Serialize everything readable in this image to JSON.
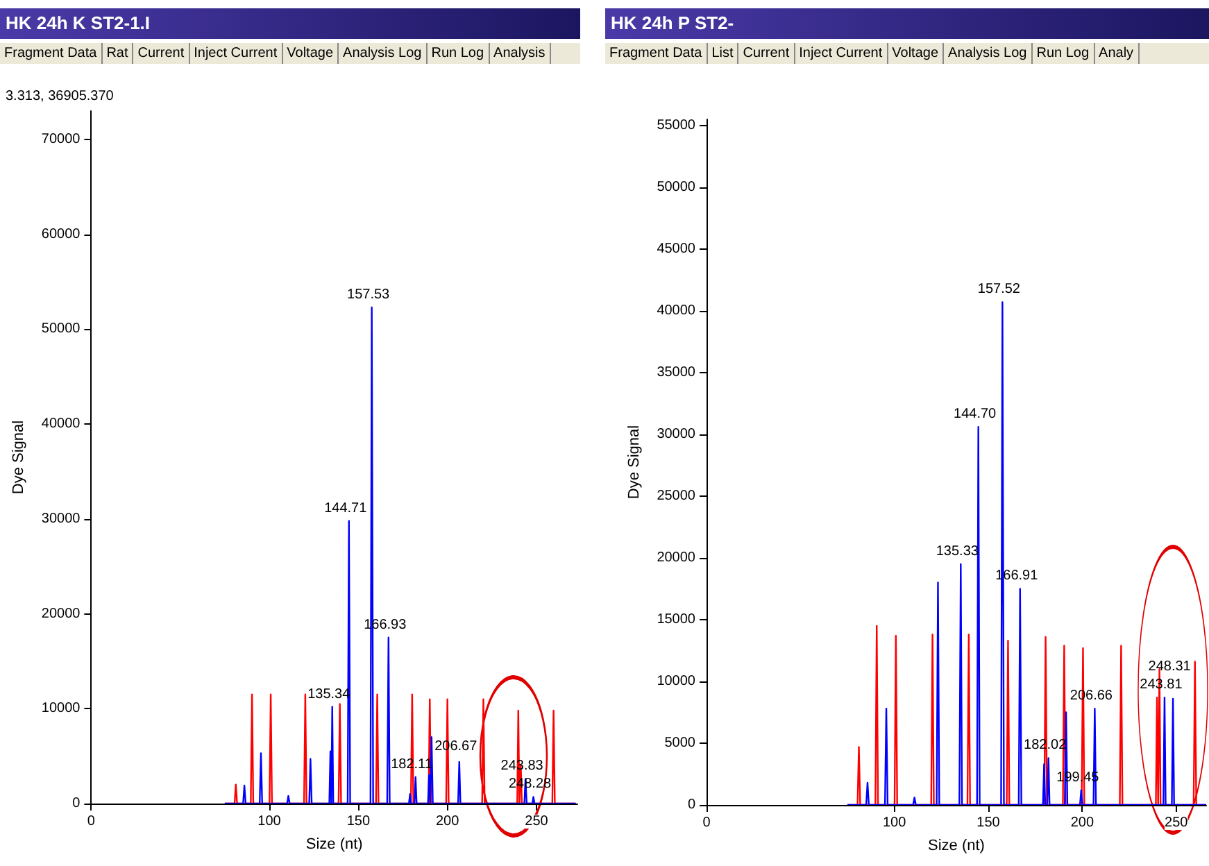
{
  "chart_data": [
    {
      "type": "line",
      "title": "HK 24h K ST2-1.I",
      "subtitle": "3.313, 36905.370",
      "xlabel": "Size (nt)",
      "ylabel": "Dye Signal",
      "xlim": [
        0,
        273
      ],
      "xticks": [
        0,
        100,
        150,
        200,
        250
      ],
      "ylim": [
        0,
        73000
      ],
      "yticks": [
        0,
        10000,
        20000,
        30000,
        40000,
        50000,
        60000,
        70000
      ],
      "series": [
        {
          "color": "#ff0000",
          "x": [
            75,
            80.5,
            81.2,
            81.9,
            89.6,
            90.3,
            91,
            100.1,
            100.8,
            101.5,
            119.5,
            120.2,
            120.9,
            138.9,
            139.6,
            140.3,
            159.9,
            160.6,
            161.3,
            179.5,
            180.2,
            180.9,
            189.4,
            190.1,
            190.8,
            199.3,
            200,
            200.7,
            219.5,
            220.2,
            220.9,
            239.2,
            239.8,
            240.4,
            240.6,
            241.2,
            241.8,
            258.9,
            259.6,
            260.3,
            272
          ],
          "values": [
            0,
            0,
            2000,
            0,
            0,
            11500,
            0,
            0,
            11500,
            0,
            0,
            11500,
            0,
            0,
            10500,
            0,
            0,
            11500,
            0,
            0,
            11500,
            0,
            0,
            11000,
            0,
            0,
            11000,
            0,
            0,
            11000,
            0,
            0,
            9800,
            0,
            0,
            4000,
            0,
            0,
            9800,
            0,
            0
          ]
        },
        {
          "color": "#0000ff",
          "x": [
            75,
            85.3,
            86,
            86.7,
            94.6,
            95.3,
            96,
            110,
            110.7,
            111.4,
            122.4,
            123.1,
            123.8,
            133.7,
            134.3,
            134.8,
            134.85,
            135.34,
            135.9,
            144,
            144.71,
            145.4,
            156.8,
            157.53,
            158.3,
            166.2,
            166.93,
            167.6,
            178.4,
            179,
            179.6,
            181.5,
            182.11,
            182.7,
            189.1,
            189.7,
            190.3,
            190.5,
            191.1,
            191.8,
            206,
            206.67,
            207.3,
            243.2,
            243.83,
            244.5,
            247.7,
            248.28,
            248.9,
            272
          ],
          "values": [
            0,
            0,
            1900,
            0,
            0,
            5300,
            0,
            0,
            800,
            0,
            0,
            4700,
            0,
            0,
            5500,
            0,
            0,
            10200,
            0,
            0,
            29800,
            0,
            0,
            52300,
            0,
            0,
            17500,
            0,
            0,
            1000,
            0,
            0,
            2800,
            0,
            0,
            3000,
            0,
            0,
            7000,
            0,
            0,
            4400,
            0,
            0,
            2600,
            0,
            0,
            700,
            0,
            0
          ]
        }
      ],
      "annotations": [
        "Fragment Data",
        "Rat",
        "Current",
        "Inject Current",
        "Voltage",
        "Analysis Log",
        "Run Log",
        "Analysis",
        {
          "text": "135.34",
          "x": 135.34,
          "y": 10200
        },
        {
          "text": "144.71",
          "x": 144.71,
          "y": 29800
        },
        {
          "text": "157.53",
          "x": 157.53,
          "y": 52300
        },
        {
          "text": "166.93",
          "x": 166.93,
          "y": 17500
        },
        {
          "text": "182.11",
          "x": 182.11,
          "y": 2800
        },
        {
          "text": "206.67",
          "x": 206.67,
          "y": 4400
        },
        {
          "text": "243.83",
          "x": 243.83,
          "y": 2600
        },
        {
          "text": "248.28",
          "x": 248.28,
          "y": 700
        }
      ]
    },
    {
      "type": "line",
      "title": "HK 24h P ST2-",
      "xlabel": "Size (nt)",
      "ylabel": "Dye Signal",
      "xlim": [
        0,
        266
      ],
      "xticks": [
        0,
        100,
        150,
        200,
        250
      ],
      "ylim": [
        0,
        55500
      ],
      "yticks": [
        0,
        5000,
        10000,
        15000,
        20000,
        25000,
        30000,
        35000,
        40000,
        45000,
        50000,
        55000
      ],
      "series": [
        {
          "color": "#ff0000",
          "x": [
            75,
            80.4,
            81.1,
            81.8,
            89.9,
            90.6,
            91.3,
            100.1,
            100.8,
            101.5,
            119.6,
            120.3,
            121,
            138.9,
            139.6,
            140.3,
            159.8,
            160.5,
            161.2,
            179.8,
            180.5,
            181.2,
            189.7,
            190.4,
            191.1,
            199.7,
            200.4,
            201.1,
            220,
            220.7,
            221.4,
            239.2,
            239.8,
            240.4,
            240.5,
            241.1,
            241.7,
            259.3,
            260,
            260.7,
            266
          ],
          "values": [
            0,
            0,
            4700,
            0,
            0,
            14500,
            0,
            0,
            13700,
            0,
            0,
            13800,
            0,
            0,
            13800,
            0,
            0,
            13300,
            0,
            0,
            13600,
            0,
            0,
            12900,
            0,
            0,
            12700,
            0,
            0,
            12900,
            0,
            0,
            8700,
            0,
            0,
            11000,
            0,
            0,
            11600,
            0,
            0
          ]
        },
        {
          "color": "#0000ff",
          "x": [
            75,
            85,
            85.7,
            86.4,
            95,
            95.7,
            96.4,
            110,
            110.7,
            111.4,
            122.5,
            123.2,
            123.9,
            134.6,
            135.33,
            136,
            144,
            144.7,
            145.4,
            156.8,
            157.52,
            158.3,
            166.2,
            166.91,
            167.6,
            179.1,
            179.7,
            180.3,
            181.4,
            182.02,
            182.6,
            190.7,
            191.4,
            192.1,
            198.8,
            199.45,
            200.1,
            206,
            206.66,
            207.3,
            243.2,
            243.81,
            244.4,
            247.7,
            248.31,
            248.9,
            266
          ],
          "values": [
            0,
            0,
            1800,
            0,
            0,
            7800,
            0,
            0,
            600,
            0,
            0,
            18000,
            0,
            0,
            19500,
            0,
            0,
            30600,
            0,
            0,
            40700,
            0,
            0,
            17500,
            0,
            0,
            3300,
            0,
            0,
            3800,
            0,
            0,
            7500,
            0,
            0,
            1200,
            0,
            0,
            7800,
            0,
            0,
            8700,
            0,
            0,
            8600,
            0,
            0
          ]
        }
      ],
      "annotations": [
        "Fragment Data",
        "List",
        "Current",
        "Inject Current",
        "Voltage",
        "Analysis Log",
        "Run Log",
        "Analy",
        {
          "text": "135.33",
          "x": 135.33,
          "y": 19500
        },
        {
          "text": "144.70",
          "x": 144.7,
          "y": 30600
        },
        {
          "text": "157.52",
          "x": 157.52,
          "y": 40700
        },
        {
          "text": "166.91",
          "x": 166.91,
          "y": 17500
        },
        {
          "text": "182.02",
          "x": 182.02,
          "y": 3800
        },
        {
          "text": "199.45",
          "x": 199.45,
          "y": 1200
        },
        {
          "text": "206.66",
          "x": 206.66,
          "y": 7800
        },
        {
          "text": "243.81",
          "x": 243.81,
          "y": 8700
        },
        {
          "text": "248.31",
          "x": 248.31,
          "y": 8600
        }
      ]
    }
  ]
}
